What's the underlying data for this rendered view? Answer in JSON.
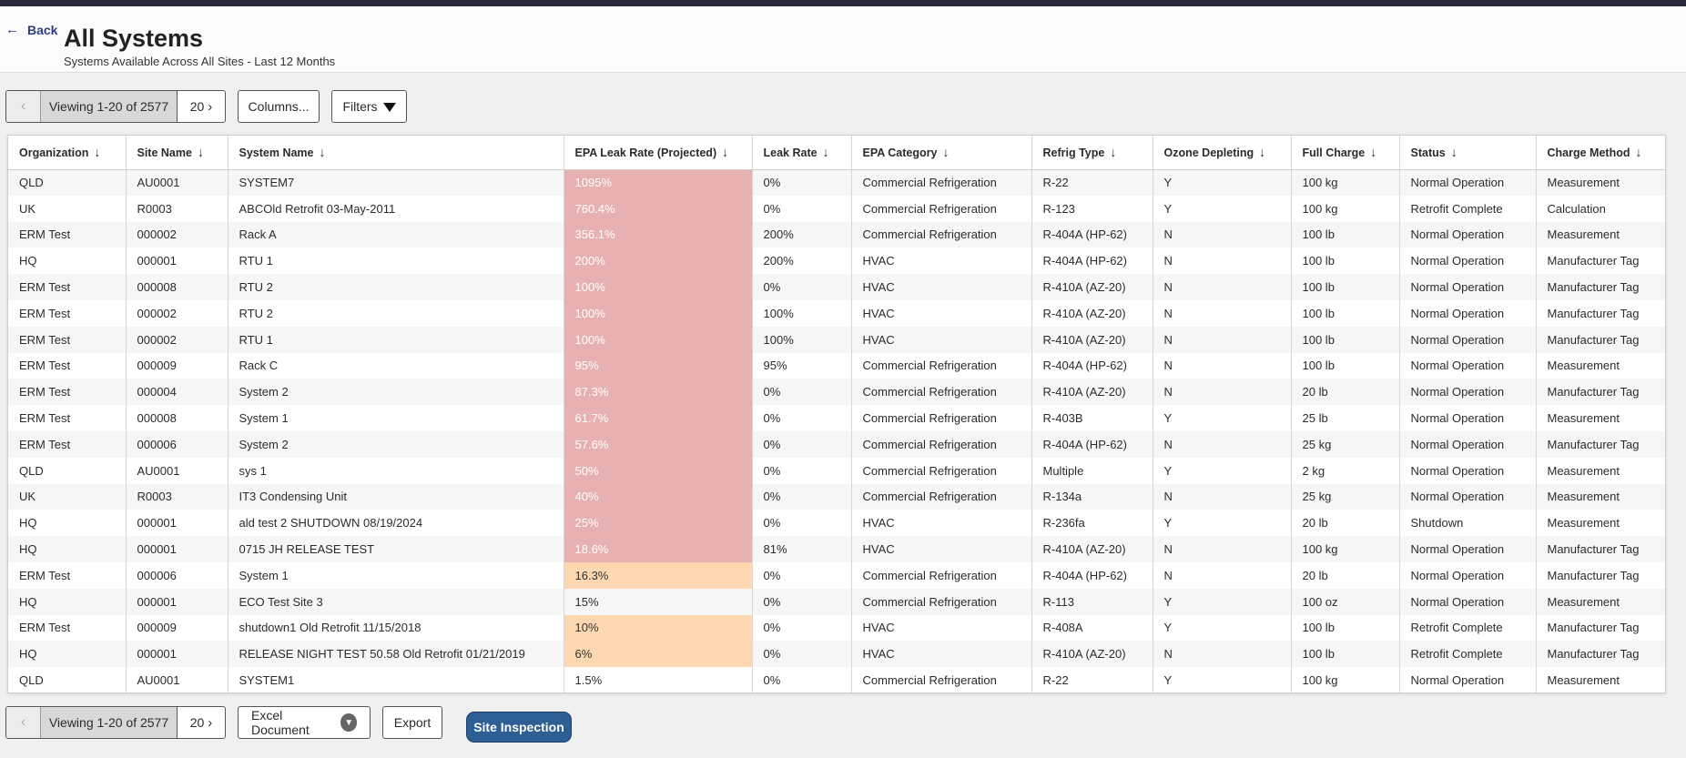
{
  "header": {
    "back_label": "Back",
    "title": "All Systems",
    "subtitle": "Systems Available Across All Sites - Last 12 Months"
  },
  "pager_top": {
    "viewing": "Viewing 1-20 of 2577",
    "page_size": "20"
  },
  "toolbar_top": {
    "columns_label": "Columns...",
    "filters_label": "Filters"
  },
  "pager_bottom": {
    "viewing": "Viewing 1-20 of 2577",
    "page_size": "20"
  },
  "toolbar_bottom": {
    "excel_label": "Excel Document",
    "export_label": "Export",
    "site_inspection_label": "Site Inspection"
  },
  "colors": {
    "high_leak": "#e8b1b1",
    "medium_leak": "#fdd7b0",
    "primary_button": "#2e5f94"
  },
  "table": {
    "columns": [
      "Organization",
      "Site Name",
      "System Name",
      "EPA Leak Rate (Projected)",
      "Leak Rate",
      "EPA Category",
      "Refrig Type",
      "Ozone Depleting",
      "Full Charge",
      "Status",
      "Charge Method"
    ],
    "rows": [
      {
        "org": "QLD",
        "site": "AU0001",
        "system": "SYSTEM7",
        "epa": "1095%",
        "epa_level": "high",
        "leak": "0%",
        "category": "Commercial Refrigeration",
        "refrig": "R-22",
        "ozone": "Y",
        "charge": "100 kg",
        "status": "Normal Operation",
        "method": "Measurement"
      },
      {
        "org": "UK",
        "site": "R0003",
        "system": "ABCOld Retrofit 03-May-2011",
        "epa": "760.4%",
        "epa_level": "high",
        "leak": "0%",
        "category": "Commercial Refrigeration",
        "refrig": "R-123",
        "ozone": "Y",
        "charge": "100 kg",
        "status": "Retrofit Complete",
        "method": "Calculation"
      },
      {
        "org": "ERM Test",
        "site": "000002",
        "system": "Rack A",
        "epa": "356.1%",
        "epa_level": "high",
        "leak": "200%",
        "category": "Commercial Refrigeration",
        "refrig": "R-404A (HP-62)",
        "ozone": "N",
        "charge": "100 lb",
        "status": "Normal Operation",
        "method": "Measurement"
      },
      {
        "org": "HQ",
        "site": "000001",
        "system": "RTU 1",
        "epa": "200%",
        "epa_level": "high",
        "leak": "200%",
        "category": "HVAC",
        "refrig": "R-404A (HP-62)",
        "ozone": "N",
        "charge": "100 lb",
        "status": "Normal Operation",
        "method": "Manufacturer Tag"
      },
      {
        "org": "ERM Test",
        "site": "000008",
        "system": "RTU 2",
        "epa": "100%",
        "epa_level": "high",
        "leak": "0%",
        "category": "HVAC",
        "refrig": "R-410A (AZ-20)",
        "ozone": "N",
        "charge": "100 lb",
        "status": "Normal Operation",
        "method": "Manufacturer Tag"
      },
      {
        "org": "ERM Test",
        "site": "000002",
        "system": "RTU 2",
        "epa": "100%",
        "epa_level": "high",
        "leak": "100%",
        "category": "HVAC",
        "refrig": "R-410A (AZ-20)",
        "ozone": "N",
        "charge": "100 lb",
        "status": "Normal Operation",
        "method": "Manufacturer Tag"
      },
      {
        "org": "ERM Test",
        "site": "000002",
        "system": "RTU 1",
        "epa": "100%",
        "epa_level": "high",
        "leak": "100%",
        "category": "HVAC",
        "refrig": "R-410A (AZ-20)",
        "ozone": "N",
        "charge": "100 lb",
        "status": "Normal Operation",
        "method": "Manufacturer Tag"
      },
      {
        "org": "ERM Test",
        "site": "000009",
        "system": "Rack C",
        "epa": "95%",
        "epa_level": "high",
        "leak": "95%",
        "category": "Commercial Refrigeration",
        "refrig": "R-404A (HP-62)",
        "ozone": "N",
        "charge": "100 lb",
        "status": "Normal Operation",
        "method": "Measurement"
      },
      {
        "org": "ERM Test",
        "site": "000004",
        "system": "System 2",
        "epa": "87.3%",
        "epa_level": "high",
        "leak": "0%",
        "category": "Commercial Refrigeration",
        "refrig": "R-410A (AZ-20)",
        "ozone": "N",
        "charge": "20 lb",
        "status": "Normal Operation",
        "method": "Manufacturer Tag"
      },
      {
        "org": "ERM Test",
        "site": "000008",
        "system": "System 1",
        "epa": "61.7%",
        "epa_level": "high",
        "leak": "0%",
        "category": "Commercial Refrigeration",
        "refrig": "R-403B",
        "ozone": "Y",
        "charge": "25 lb",
        "status": "Normal Operation",
        "method": "Measurement"
      },
      {
        "org": "ERM Test",
        "site": "000006",
        "system": "System 2",
        "epa": "57.6%",
        "epa_level": "high",
        "leak": "0%",
        "category": "Commercial Refrigeration",
        "refrig": "R-404A (HP-62)",
        "ozone": "N",
        "charge": "25 kg",
        "status": "Normal Operation",
        "method": "Manufacturer Tag"
      },
      {
        "org": "QLD",
        "site": "AU0001",
        "system": "sys 1",
        "epa": "50%",
        "epa_level": "high",
        "leak": "0%",
        "category": "Commercial Refrigeration",
        "refrig": "Multiple",
        "ozone": "Y",
        "charge": "2 kg",
        "status": "Normal Operation",
        "method": "Measurement"
      },
      {
        "org": "UK",
        "site": "R0003",
        "system": "IT3 Condensing Unit",
        "epa": "40%",
        "epa_level": "high",
        "leak": "0%",
        "category": "Commercial Refrigeration",
        "refrig": "R-134a",
        "ozone": "N",
        "charge": "25 kg",
        "status": "Normal Operation",
        "method": "Measurement"
      },
      {
        "org": "HQ",
        "site": "000001",
        "system": "ald test 2 SHUTDOWN 08/19/2024",
        "epa": "25%",
        "epa_level": "high",
        "leak": "0%",
        "category": "HVAC",
        "refrig": "R-236fa",
        "ozone": "Y",
        "charge": "20 lb",
        "status": "Shutdown",
        "method": "Measurement"
      },
      {
        "org": "HQ",
        "site": "000001",
        "system": "0715 JH RELEASE TEST",
        "epa": "18.6%",
        "epa_level": "high",
        "leak": "81%",
        "category": "HVAC",
        "refrig": "R-410A (AZ-20)",
        "ozone": "N",
        "charge": "100 kg",
        "status": "Normal Operation",
        "method": "Manufacturer Tag"
      },
      {
        "org": "ERM Test",
        "site": "000006",
        "system": "System 1",
        "epa": "16.3%",
        "epa_level": "medium",
        "leak": "0%",
        "category": "Commercial Refrigeration",
        "refrig": "R-404A (HP-62)",
        "ozone": "N",
        "charge": "20 lb",
        "status": "Normal Operation",
        "method": "Manufacturer Tag"
      },
      {
        "org": "HQ",
        "site": "000001",
        "system": "ECO Test Site 3",
        "epa": "15%",
        "epa_level": "none",
        "leak": "0%",
        "category": "Commercial Refrigeration",
        "refrig": "R-113",
        "ozone": "Y",
        "charge": "100 oz",
        "status": "Normal Operation",
        "method": "Measurement"
      },
      {
        "org": "ERM Test",
        "site": "000009",
        "system": "shutdown1 Old Retrofit 11/15/2018",
        "epa": "10%",
        "epa_level": "medium",
        "leak": "0%",
        "category": "HVAC",
        "refrig": "R-408A",
        "ozone": "Y",
        "charge": "100 lb",
        "status": "Retrofit Complete",
        "method": "Manufacturer Tag"
      },
      {
        "org": "HQ",
        "site": "000001",
        "system": "RELEASE NIGHT TEST 50.58 Old Retrofit 01/21/2019",
        "epa": "6%",
        "epa_level": "medium",
        "leak": "0%",
        "category": "HVAC",
        "refrig": "R-410A (AZ-20)",
        "ozone": "N",
        "charge": "100 lb",
        "status": "Retrofit Complete",
        "method": "Manufacturer Tag"
      },
      {
        "org": "QLD",
        "site": "AU0001",
        "system": "SYSTEM1",
        "epa": "1.5%",
        "epa_level": "none",
        "leak": "0%",
        "category": "Commercial Refrigeration",
        "refrig": "R-22",
        "ozone": "Y",
        "charge": "100 kg",
        "status": "Normal Operation",
        "method": "Measurement"
      }
    ]
  }
}
